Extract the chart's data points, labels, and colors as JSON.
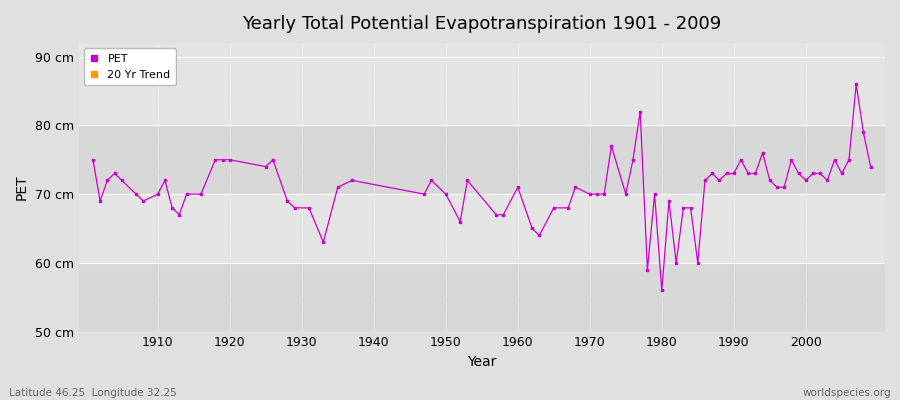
{
  "title": "Yearly Total Potential Evapotranspiration 1901 - 2009",
  "xlabel": "Year",
  "ylabel": "PET",
  "xlim": [
    1899,
    2011
  ],
  "ylim": [
    50,
    92
  ],
  "yticks": [
    50,
    60,
    70,
    80,
    90
  ],
  "ytick_labels": [
    "50 cm",
    "60 cm",
    "70 cm",
    "80 cm",
    "90 cm"
  ],
  "xticks": [
    1910,
    1920,
    1930,
    1940,
    1950,
    1960,
    1970,
    1980,
    1990,
    2000
  ],
  "pet_color": "#cc00cc",
  "trend_color": "#ff9900",
  "bg_outer": "#e0e0e0",
  "bg_inner_light": "#e8e8e8",
  "bg_inner_dark": "#d8d8d8",
  "footnote_left": "Latitude 46.25  Longitude 32.25",
  "footnote_right": "worldspecies.org",
  "pet_years": [
    1901,
    1902,
    1903,
    1904,
    1905,
    1907,
    1908,
    1910,
    1911,
    1912,
    1913,
    1914,
    1916,
    1918,
    1919,
    1920,
    1925,
    1926,
    1928,
    1929,
    1931,
    1933,
    1935,
    1937,
    1947,
    1948,
    1950,
    1952,
    1953,
    1957,
    1958,
    1960,
    1962,
    1963,
    1965,
    1967,
    1968,
    1970,
    1971,
    1972,
    1973,
    1975,
    1976,
    1977,
    1978,
    1979,
    1980,
    1981,
    1982,
    1983,
    1984,
    1985,
    1986,
    1987,
    1988,
    1989,
    1990,
    1991,
    1992,
    1993,
    1994,
    1995,
    1996,
    1997,
    1998,
    1999,
    2000,
    2001,
    2002,
    2003,
    2004,
    2005,
    2006,
    2007,
    2008,
    2009
  ],
  "pet_values": [
    75,
    69,
    72,
    73,
    72,
    70,
    69,
    70,
    72,
    68,
    67,
    70,
    70,
    75,
    75,
    75,
    74,
    75,
    69,
    68,
    68,
    63,
    71,
    72,
    70,
    72,
    70,
    66,
    72,
    67,
    67,
    71,
    65,
    64,
    68,
    68,
    71,
    70,
    70,
    70,
    77,
    70,
    75,
    82,
    59,
    70,
    56,
    69,
    60,
    68,
    68,
    60,
    72,
    73,
    72,
    73,
    73,
    75,
    73,
    73,
    76,
    72,
    71,
    71,
    75,
    73,
    72,
    73,
    73,
    72,
    75,
    73,
    75,
    86,
    79,
    74
  ],
  "band_ranges": [
    [
      50,
      60
    ],
    [
      60,
      70
    ],
    [
      70,
      80
    ],
    [
      80,
      92
    ]
  ],
  "band_colors": [
    "#d8d8d8",
    "#e4e4e4",
    "#d8d8d8",
    "#e4e4e4"
  ]
}
